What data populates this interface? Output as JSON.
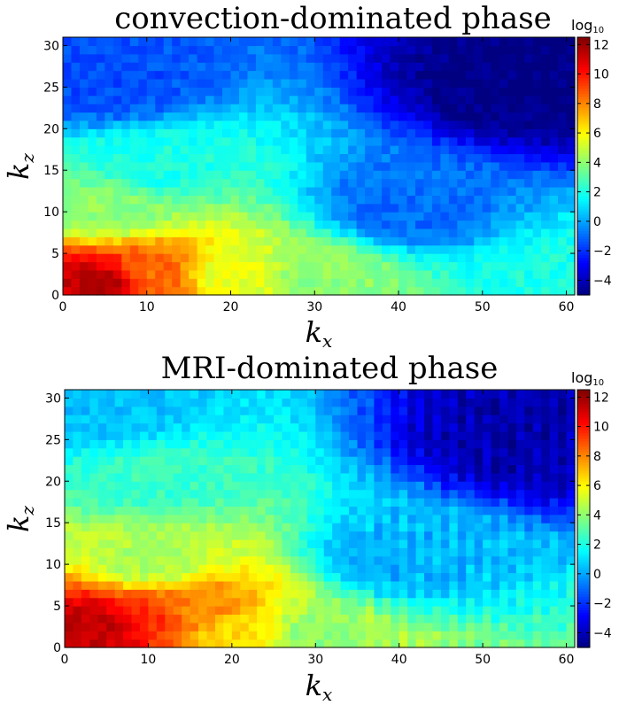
{
  "chart_data": [
    {
      "type": "heatmap",
      "title": "convection-dominated phase",
      "xlabel": "k",
      "xlabel_sub": "x",
      "ylabel": "k",
      "ylabel_sub": "z",
      "xlim": [
        0,
        61
      ],
      "ylim": [
        0,
        31
      ],
      "xticks": [
        0,
        10,
        20,
        30,
        40,
        50,
        60
      ],
      "yticks": [
        0,
        5,
        10,
        15,
        20,
        25,
        30
      ],
      "colorbar": {
        "label": "log",
        "label_sub": "10",
        "range": [
          -5,
          12.5
        ],
        "ticks": [
          -4,
          -2,
          0,
          2,
          4,
          6,
          8,
          10,
          12
        ],
        "colormap": "jet"
      },
      "peak": {
        "kx": 4,
        "kz": 0.5,
        "value": 12.3
      },
      "approx_levels": [
        {
          "kx": 4,
          "kz": 1,
          "value": 11.5
        },
        {
          "kx": 10,
          "kz": 2,
          "value": 8.5
        },
        {
          "kx": 20,
          "kz": 2,
          "value": 5.5
        },
        {
          "kx": 30,
          "kz": 2,
          "value": 4
        },
        {
          "kx": 60,
          "kz": 1,
          "value": 2
        },
        {
          "kx": 5,
          "kz": 10,
          "value": 4
        },
        {
          "kx": 10,
          "kz": 15,
          "value": 2
        },
        {
          "kx": 5,
          "kz": 25,
          "value": -1.5
        },
        {
          "kx": 40,
          "kz": 10,
          "value": -1
        },
        {
          "kx": 55,
          "kz": 25,
          "value": -5
        }
      ]
    },
    {
      "type": "heatmap",
      "title": "MRI-dominated phase",
      "xlabel": "k",
      "xlabel_sub": "x",
      "ylabel": "k",
      "ylabel_sub": "z",
      "xlim": [
        0,
        61
      ],
      "ylim": [
        0,
        31
      ],
      "xticks": [
        0,
        10,
        20,
        30,
        40,
        50,
        60
      ],
      "yticks": [
        0,
        5,
        10,
        15,
        20,
        25,
        30
      ],
      "colorbar": {
        "label": "log",
        "label_sub": "10",
        "range": [
          -5,
          12.5
        ],
        "ticks": [
          -4,
          -2,
          0,
          2,
          4,
          6,
          8,
          10,
          12
        ],
        "colormap": "jet"
      },
      "peak": {
        "kx": 4,
        "kz": 1,
        "value": 12.3
      },
      "approx_levels": [
        {
          "kx": 4,
          "kz": 2,
          "value": 11.5
        },
        {
          "kx": 10,
          "kz": 3,
          "value": 9.5
        },
        {
          "kx": 15,
          "kz": 4,
          "value": 8
        },
        {
          "kx": 20,
          "kz": 1,
          "value": 6.5
        },
        {
          "kx": 30,
          "kz": 1,
          "value": 4
        },
        {
          "kx": 10,
          "kz": 10,
          "value": 4.5
        },
        {
          "kx": 10,
          "kz": 20,
          "value": 2.5
        },
        {
          "kx": 5,
          "kz": 28,
          "value": 0.5
        },
        {
          "kx": 40,
          "kz": 10,
          "value": 0
        },
        {
          "kx": 55,
          "kz": 25,
          "value": -4.5
        }
      ]
    }
  ]
}
